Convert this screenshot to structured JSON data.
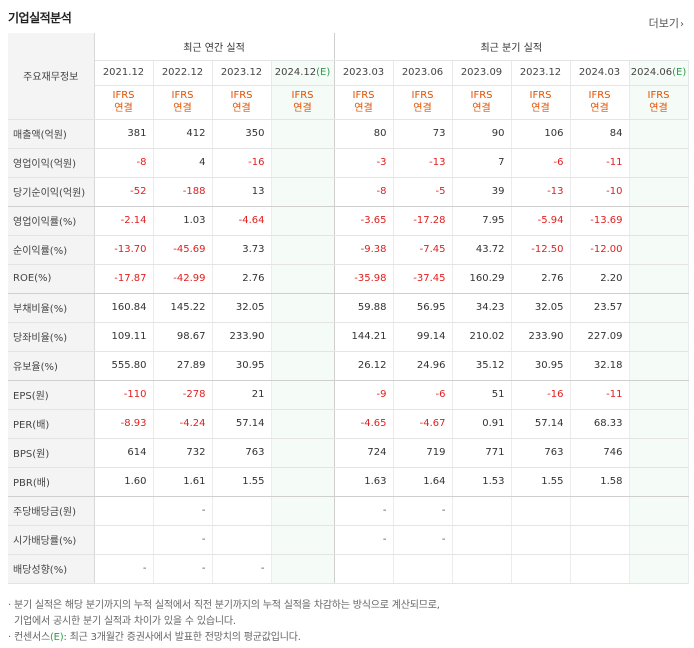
{
  "title": "기업실적분석",
  "more_label": "더보기",
  "row_header": "주요재무정보",
  "groups": {
    "annual": "최근 연간 실적",
    "quarterly": "최근 분기 실적"
  },
  "periods": [
    "2021.12",
    "2022.12",
    "2023.12",
    "2024.12",
    "2023.03",
    "2023.06",
    "2023.09",
    "2023.12",
    "2024.03",
    "2024.06"
  ],
  "estimate_mark": "(E)",
  "ifrs_line1": "IFRS",
  "ifrs_line2": "연결",
  "rows": [
    {
      "label": "매출액(억원)",
      "values": [
        "381",
        "412",
        "350",
        "",
        "80",
        "73",
        "90",
        "106",
        "84",
        ""
      ]
    },
    {
      "label": "영업이익(억원)",
      "values": [
        "-8",
        "4",
        "-16",
        "",
        "-3",
        "-13",
        "7",
        "-6",
        "-11",
        ""
      ]
    },
    {
      "label": "당기순이익(억원)",
      "values": [
        "-52",
        "-188",
        "13",
        "",
        "-8",
        "-5",
        "39",
        "-13",
        "-10",
        ""
      ]
    },
    {
      "label": "영업이익률(%)",
      "values": [
        "-2.14",
        "1.03",
        "-4.64",
        "",
        "-3.65",
        "-17.28",
        "7.95",
        "-5.94",
        "-13.69",
        ""
      ]
    },
    {
      "label": "순이익률(%)",
      "values": [
        "-13.70",
        "-45.69",
        "3.73",
        "",
        "-9.38",
        "-7.45",
        "43.72",
        "-12.50",
        "-12.00",
        ""
      ]
    },
    {
      "label": "ROE(%)",
      "values": [
        "-17.87",
        "-42.99",
        "2.76",
        "",
        "-35.98",
        "-37.45",
        "160.29",
        "2.76",
        "2.20",
        ""
      ]
    },
    {
      "label": "부채비율(%)",
      "values": [
        "160.84",
        "145.22",
        "32.05",
        "",
        "59.88",
        "56.95",
        "34.23",
        "32.05",
        "23.57",
        ""
      ]
    },
    {
      "label": "당좌비율(%)",
      "values": [
        "109.11",
        "98.67",
        "233.90",
        "",
        "144.21",
        "99.14",
        "210.02",
        "233.90",
        "227.09",
        ""
      ]
    },
    {
      "label": "유보율(%)",
      "values": [
        "555.80",
        "27.89",
        "30.95",
        "",
        "26.12",
        "24.96",
        "35.12",
        "30.95",
        "32.18",
        ""
      ]
    },
    {
      "label": "EPS(원)",
      "values": [
        "-110",
        "-278",
        "21",
        "",
        "-9",
        "-6",
        "51",
        "-16",
        "-11",
        ""
      ]
    },
    {
      "label": "PER(배)",
      "values": [
        "-8.93",
        "-4.24",
        "57.14",
        "",
        "-4.65",
        "-4.67",
        "0.91",
        "57.14",
        "68.33",
        ""
      ]
    },
    {
      "label": "BPS(원)",
      "values": [
        "614",
        "732",
        "763",
        "",
        "724",
        "719",
        "771",
        "763",
        "746",
        ""
      ]
    },
    {
      "label": "PBR(배)",
      "values": [
        "1.60",
        "1.61",
        "1.55",
        "",
        "1.63",
        "1.64",
        "1.53",
        "1.55",
        "1.58",
        ""
      ]
    },
    {
      "label": "주당배당금(원)",
      "values": [
        "",
        "-",
        "",
        "",
        "-",
        "-",
        "",
        "",
        "",
        ""
      ]
    },
    {
      "label": "시가배당률(%)",
      "values": [
        "",
        "-",
        "",
        "",
        "-",
        "-",
        "",
        "",
        "",
        ""
      ]
    },
    {
      "label": "배당성향(%)",
      "values": [
        "-",
        "-",
        "-",
        "",
        "",
        "",
        "",
        "",
        "",
        ""
      ]
    }
  ],
  "notes": {
    "line1": "· 분기 실적은 해당 분기까지의 누적 실적에서 직전 분기까지의 누적 실적을 차감하는 방식으로 계산되므로,",
    "line2": "기업에서 공시한 분기 실적과 차이가 있을 수 있습니다.",
    "line3_pre": "· 컨센서스",
    "line3_post": ": 최근 3개월간 증권사에서 발표한 전망치의 평균값입니다."
  },
  "colors": {
    "negative": "#e02020",
    "ifrs": "#e05000",
    "estimate": "#2c9e4a",
    "forecast_bg": "#f5fbf6"
  }
}
